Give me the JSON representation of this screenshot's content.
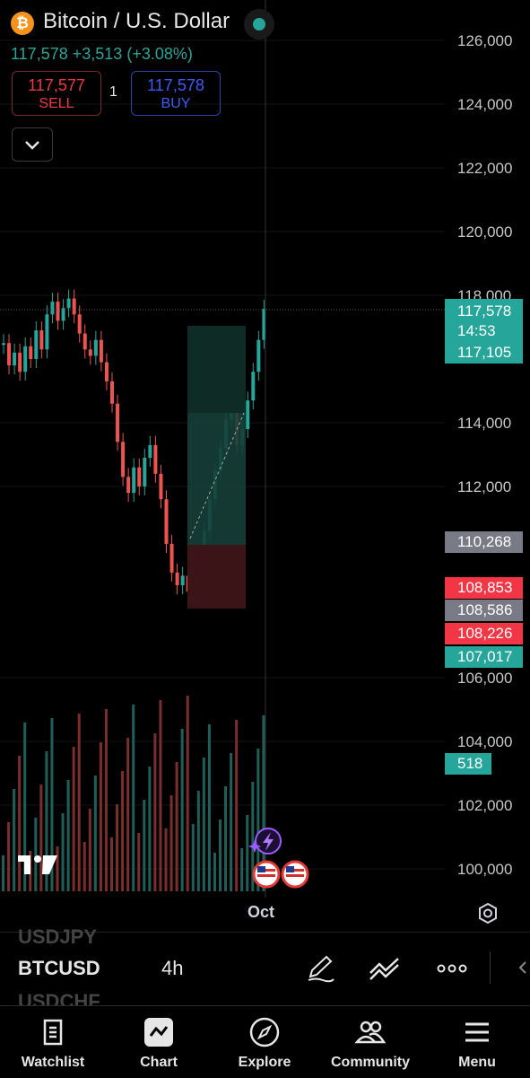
{
  "header": {
    "title": "Bitcoin / U.S. Dollar",
    "logo_glyph": "₿",
    "last_price": "117,578",
    "change": "+3,513",
    "change_pct": "(+3.08%)",
    "market_status_color": "#26a69a"
  },
  "trade": {
    "sell_price": "117,577",
    "sell_label": "SELL",
    "buy_price": "117,578",
    "buy_label": "BUY",
    "quantity": "1"
  },
  "price_axis": {
    "ticks": [
      "126,000",
      "124,000",
      "122,000",
      "120,000",
      "118,000",
      "114,000",
      "112,000",
      "106,000",
      "104,000",
      "102,000",
      "100,000"
    ],
    "tags": [
      {
        "price": "117,578",
        "countdown": "14:53",
        "color": "#26a69a"
      },
      {
        "price": "117,105",
        "color": "#26a69a"
      },
      {
        "price": "110,268",
        "color": "#787b86"
      },
      {
        "price": "108,853",
        "color": "#f23645"
      },
      {
        "price": "108,586",
        "color": "#787b86"
      },
      {
        "price": "108,226",
        "color": "#f23645"
      },
      {
        "price": "107,017",
        "color": "#26a69a"
      },
      {
        "price": "518",
        "color": "#26a69a"
      }
    ]
  },
  "time_axis": {
    "label": "Oct"
  },
  "symbol_bar": {
    "prev_symbol": "USDJPY",
    "symbol": "BTCUSD",
    "next_symbol": "USDCHF",
    "interval": "4h"
  },
  "nav": [
    {
      "label": "Watchlist",
      "icon": "watchlist-icon"
    },
    {
      "label": "Chart",
      "icon": "chart-icon"
    },
    {
      "label": "Explore",
      "icon": "compass-icon"
    },
    {
      "label": "Community",
      "icon": "community-icon"
    },
    {
      "label": "Menu",
      "icon": "menu-icon"
    }
  ],
  "colors": {
    "up": "#26a69a",
    "down": "#ef5350",
    "accent": "#2962ff"
  }
}
